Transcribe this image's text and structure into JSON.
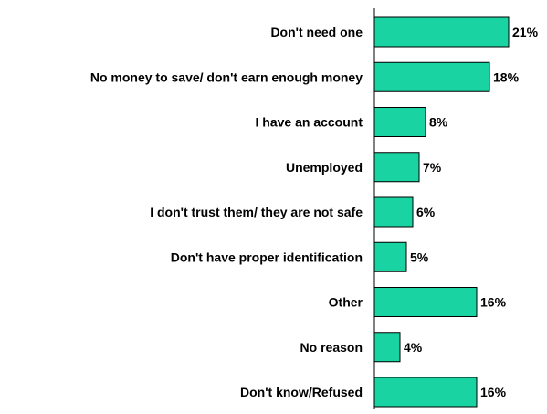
{
  "chart_data": {
    "type": "bar",
    "orientation": "horizontal",
    "categories": [
      "Don't need one",
      "No money to save/ don't earn enough money",
      "I have an account",
      "Unemployed",
      "I don't trust them/ they are not safe",
      "Don't have proper identification",
      "Other",
      "No reason",
      "Don't know/Refused"
    ],
    "values": [
      21,
      18,
      8,
      7,
      6,
      5,
      16,
      4,
      16
    ],
    "value_labels": [
      "21%",
      "18%",
      "8%",
      "7%",
      "6%",
      "5%",
      "16%",
      "4%",
      "16%"
    ],
    "title": "",
    "xlabel": "",
    "ylabel": "",
    "xlim": [
      0,
      21
    ],
    "grid": false,
    "legend": "none",
    "bar_color": "#19d3a2"
  }
}
